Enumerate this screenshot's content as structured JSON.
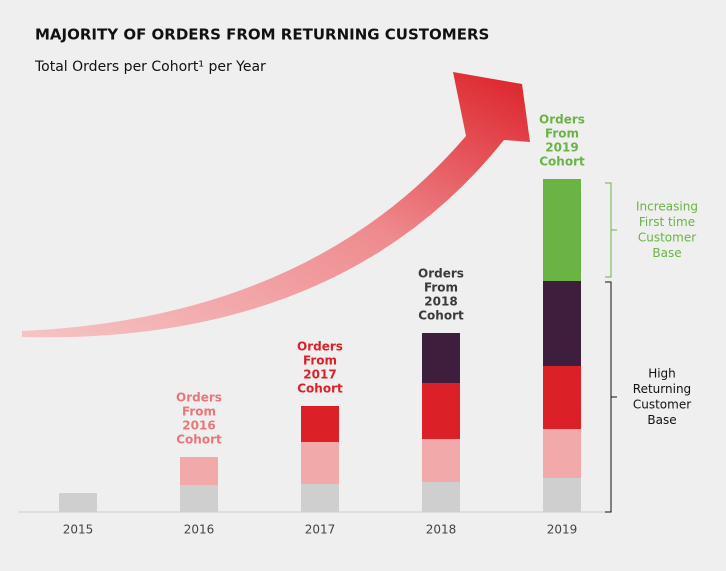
{
  "chart_data": {
    "type": "bar",
    "stacked": true,
    "title": "MAJORITY OF ORDERS FROM RETURNING CUSTOMERS",
    "subtitle": "Total Orders per Cohort¹ per Year",
    "categories": [
      "2015",
      "2016",
      "2017",
      "2018",
      "2019"
    ],
    "ylim": [
      0,
      340
    ],
    "series": [
      {
        "color": "#cfcfcf",
        "values": [
          19,
          27,
          28,
          30,
          34
        ]
      },
      {
        "color": "#f2a9a9",
        "values": [
          null,
          28,
          42,
          43,
          49
        ],
        "annotation": [
          "Orders",
          "From",
          "2016",
          "Cohort"
        ],
        "annotation_color": "#e8777a"
      },
      {
        "color": "#dc2028",
        "values": [
          null,
          null,
          36,
          56,
          63
        ],
        "annotation": [
          "Orders",
          "From",
          "2017",
          "Cohort"
        ],
        "annotation_color": "#dc2028"
      },
      {
        "color": "#3d1f3d",
        "values": [
          null,
          null,
          null,
          50,
          85
        ],
        "annotation": [
          "Orders",
          "From",
          "2018",
          "Cohort"
        ],
        "annotation_color": "#3a3a3a"
      },
      {
        "color": "#6ab344",
        "values": [
          null,
          null,
          null,
          null,
          102
        ],
        "annotation": [
          "Orders",
          "From",
          "2019",
          "Cohort"
        ],
        "annotation_color": "#6ab344"
      }
    ],
    "brackets": [
      {
        "label": [
          "Increasing",
          "First time",
          "Customer",
          "Base"
        ],
        "color": "#6ab344"
      },
      {
        "label": [
          "High",
          "Returning",
          "Customer",
          "Base"
        ],
        "color": "#111111"
      }
    ]
  }
}
